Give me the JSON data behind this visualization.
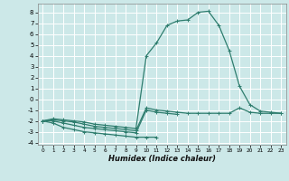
{
  "xlabel": "Humidex (Indice chaleur)",
  "bg_color": "#cce8e8",
  "grid_color": "#ffffff",
  "line_color": "#2e7d6e",
  "xlim": [
    -0.5,
    23.5
  ],
  "ylim": [
    -4.2,
    8.8
  ],
  "xticks": [
    0,
    1,
    2,
    3,
    4,
    5,
    6,
    7,
    8,
    9,
    10,
    11,
    12,
    13,
    14,
    15,
    16,
    17,
    18,
    19,
    20,
    21,
    22,
    23
  ],
  "yticks": [
    -4,
    -3,
    -2,
    -1,
    0,
    1,
    2,
    3,
    4,
    5,
    6,
    7,
    8
  ],
  "series": [
    {
      "x": [
        0,
        1,
        2,
        3,
        4,
        5,
        6,
        7,
        8,
        9,
        10,
        11
      ],
      "y": [
        -2.0,
        -2.2,
        -2.6,
        -2.8,
        -3.0,
        -3.1,
        -3.2,
        -3.3,
        -3.4,
        -3.5,
        -3.5,
        -3.5
      ]
    },
    {
      "x": [
        0,
        1,
        2,
        3,
        4,
        5,
        6,
        7,
        8,
        9,
        10,
        11,
        12,
        13
      ],
      "y": [
        -2.0,
        -2.0,
        -2.2,
        -2.4,
        -2.6,
        -2.7,
        -2.8,
        -2.9,
        -3.0,
        -3.1,
        -1.0,
        -1.2,
        -1.3,
        -1.4
      ]
    },
    {
      "x": [
        0,
        1,
        2,
        3,
        4,
        5,
        6,
        7,
        8,
        9,
        10,
        11,
        12,
        13,
        14,
        15,
        16,
        17,
        18,
        19,
        20,
        21,
        22,
        23
      ],
      "y": [
        -2.0,
        -1.9,
        -2.0,
        -2.1,
        -2.3,
        -2.5,
        -2.6,
        -2.7,
        -2.8,
        -2.9,
        -0.8,
        -1.0,
        -1.1,
        -1.2,
        -1.3,
        -1.3,
        -1.3,
        -1.3,
        -1.3,
        -0.8,
        -1.2,
        -1.3,
        -1.3,
        -1.3
      ]
    },
    {
      "x": [
        0,
        1,
        2,
        3,
        4,
        5,
        6,
        7,
        8,
        9,
        10,
        11,
        12,
        13,
        14,
        15,
        16,
        17,
        18,
        19,
        20,
        21,
        22,
        23
      ],
      "y": [
        -2.0,
        -1.8,
        -1.9,
        -2.0,
        -2.1,
        -2.3,
        -2.4,
        -2.5,
        -2.6,
        -2.7,
        4.0,
        5.2,
        6.8,
        7.2,
        7.3,
        8.0,
        8.1,
        6.8,
        4.5,
        1.2,
        -0.5,
        -1.1,
        -1.2,
        -1.3
      ]
    }
  ]
}
